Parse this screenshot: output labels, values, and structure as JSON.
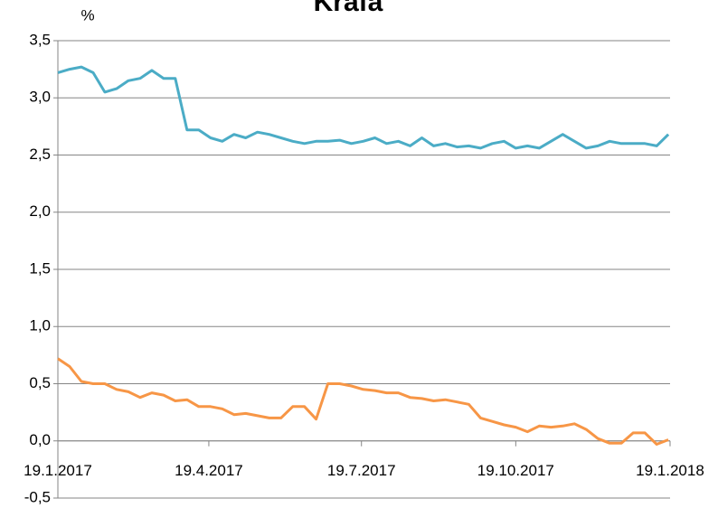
{
  "chart_data": {
    "type": "line",
    "title": "Krafa",
    "y_label": "%",
    "x": [
      "2017-01-19",
      "2017-01-26",
      "2017-02-02",
      "2017-02-09",
      "2017-02-16",
      "2017-02-23",
      "2017-03-02",
      "2017-03-09",
      "2017-03-16",
      "2017-03-23",
      "2017-03-30",
      "2017-04-06",
      "2017-04-13",
      "2017-04-20",
      "2017-04-27",
      "2017-05-04",
      "2017-05-11",
      "2017-05-18",
      "2017-05-25",
      "2017-06-01",
      "2017-06-08",
      "2017-06-15",
      "2017-06-22",
      "2017-06-29",
      "2017-07-06",
      "2017-07-13",
      "2017-07-20",
      "2017-07-27",
      "2017-08-03",
      "2017-08-10",
      "2017-08-17",
      "2017-08-24",
      "2017-08-31",
      "2017-09-07",
      "2017-09-14",
      "2017-09-21",
      "2017-09-28",
      "2017-10-05",
      "2017-10-12",
      "2017-10-19",
      "2017-10-26",
      "2017-11-02",
      "2017-11-09",
      "2017-11-16",
      "2017-11-23",
      "2017-11-30",
      "2017-12-07",
      "2017-12-14",
      "2017-12-21",
      "2017-12-28",
      "2018-01-04",
      "2018-01-11",
      "2018-01-18"
    ],
    "series": [
      {
        "color": "#4bacc6",
        "values": [
          3.22,
          3.25,
          3.27,
          3.22,
          3.05,
          3.08,
          3.15,
          3.17,
          3.24,
          3.17,
          3.17,
          2.72,
          2.72,
          2.65,
          2.62,
          2.68,
          2.65,
          2.7,
          2.68,
          2.65,
          2.62,
          2.6,
          2.62,
          2.62,
          2.63,
          2.6,
          2.62,
          2.65,
          2.6,
          2.62,
          2.58,
          2.65,
          2.58,
          2.6,
          2.57,
          2.58,
          2.56,
          2.6,
          2.62,
          2.56,
          2.58,
          2.56,
          2.62,
          2.68,
          2.62,
          2.56,
          2.58,
          2.62,
          2.6,
          2.6,
          2.6,
          2.58,
          2.68
        ]
      },
      {
        "color": "#f79646",
        "values": [
          0.72,
          0.65,
          0.52,
          0.5,
          0.5,
          0.45,
          0.43,
          0.38,
          0.42,
          0.4,
          0.35,
          0.36,
          0.3,
          0.3,
          0.28,
          0.23,
          0.24,
          0.22,
          0.2,
          0.2,
          0.3,
          0.3,
          0.19,
          0.5,
          0.5,
          0.48,
          0.45,
          0.44,
          0.42,
          0.42,
          0.38,
          0.37,
          0.35,
          0.36,
          0.34,
          0.32,
          0.2,
          0.17,
          0.14,
          0.12,
          0.08,
          0.13,
          0.12,
          0.13,
          0.15,
          0.1,
          0.02,
          -0.02,
          -0.02,
          0.07,
          0.07,
          -0.03,
          0.01
        ]
      }
    ],
    "xlim": [
      "2017-01-19",
      "2018-01-19"
    ],
    "xticks": [
      {
        "value": "2017-01-19",
        "label": "19.1.2017"
      },
      {
        "value": "2017-04-19",
        "label": "19.4.2017"
      },
      {
        "value": "2017-07-19",
        "label": "19.7.2017"
      },
      {
        "value": "2017-10-19",
        "label": "19.10.2017"
      },
      {
        "value": "2018-01-19",
        "label": "19.1.2018"
      }
    ],
    "ylim": [
      -0.5,
      3.5
    ],
    "yticks": [
      {
        "value": -0.5,
        "label": "-0,5"
      },
      {
        "value": 0,
        "label": "0,0"
      },
      {
        "value": 0.5,
        "label": "0,5"
      },
      {
        "value": 1,
        "label": "1,0"
      },
      {
        "value": 1.5,
        "label": "1,5"
      },
      {
        "value": 2,
        "label": "2,0"
      },
      {
        "value": 2.5,
        "label": "2,5"
      },
      {
        "value": 3,
        "label": "3,0"
      },
      {
        "value": 3.5,
        "label": "3,5"
      }
    ],
    "grid": true
  }
}
